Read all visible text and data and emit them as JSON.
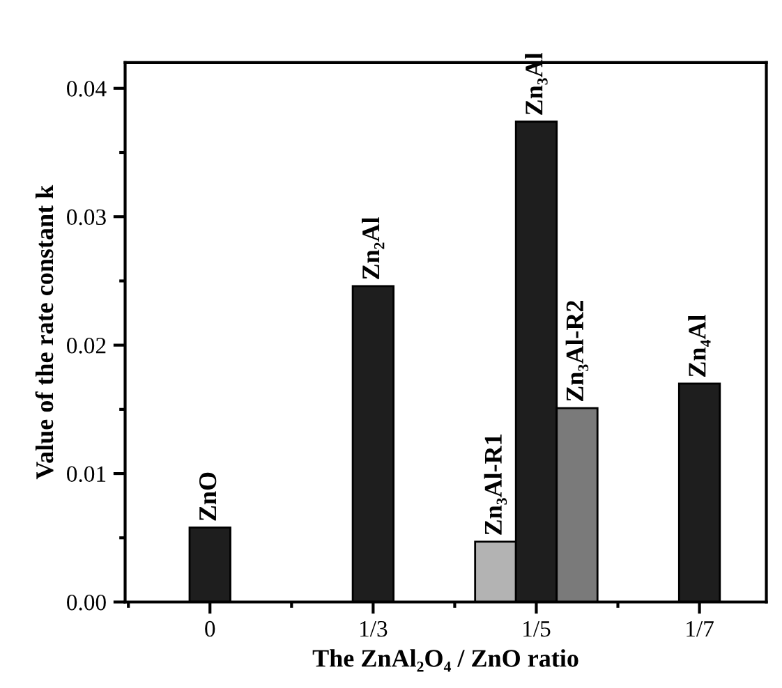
{
  "chart_data": {
    "type": "bar",
    "xlabel": "The ZnAl₂O₄ / ZnO ratio",
    "ylabel": "Value of the rate constant k",
    "categories": [
      "0",
      "1/3",
      "1/5",
      "1/7"
    ],
    "series": [
      {
        "color": "#b3b3b3",
        "values": [
          null,
          null,
          0.0047,
          null
        ],
        "value_labels": [
          null,
          null,
          "Zn₃Al-R1",
          null
        ]
      },
      {
        "color": "#1e1e1e",
        "values": [
          0.0058,
          0.0246,
          0.0374,
          0.017
        ],
        "value_labels": [
          "ZnO",
          "Zn₂Al",
          "Zn₃Al",
          "Zn₄Al"
        ]
      },
      {
        "color": "#7a7a7a",
        "values": [
          null,
          null,
          0.0151,
          null
        ],
        "value_labels": [
          null,
          null,
          "Zn₃Al-R2",
          null
        ]
      }
    ],
    "ylim": [
      0,
      0.042
    ],
    "yticks": [
      {
        "value": 0,
        "label": "0.00"
      },
      0.01,
      0.02,
      0.03,
      0.04
    ],
    "grid": false,
    "legend": false
  }
}
